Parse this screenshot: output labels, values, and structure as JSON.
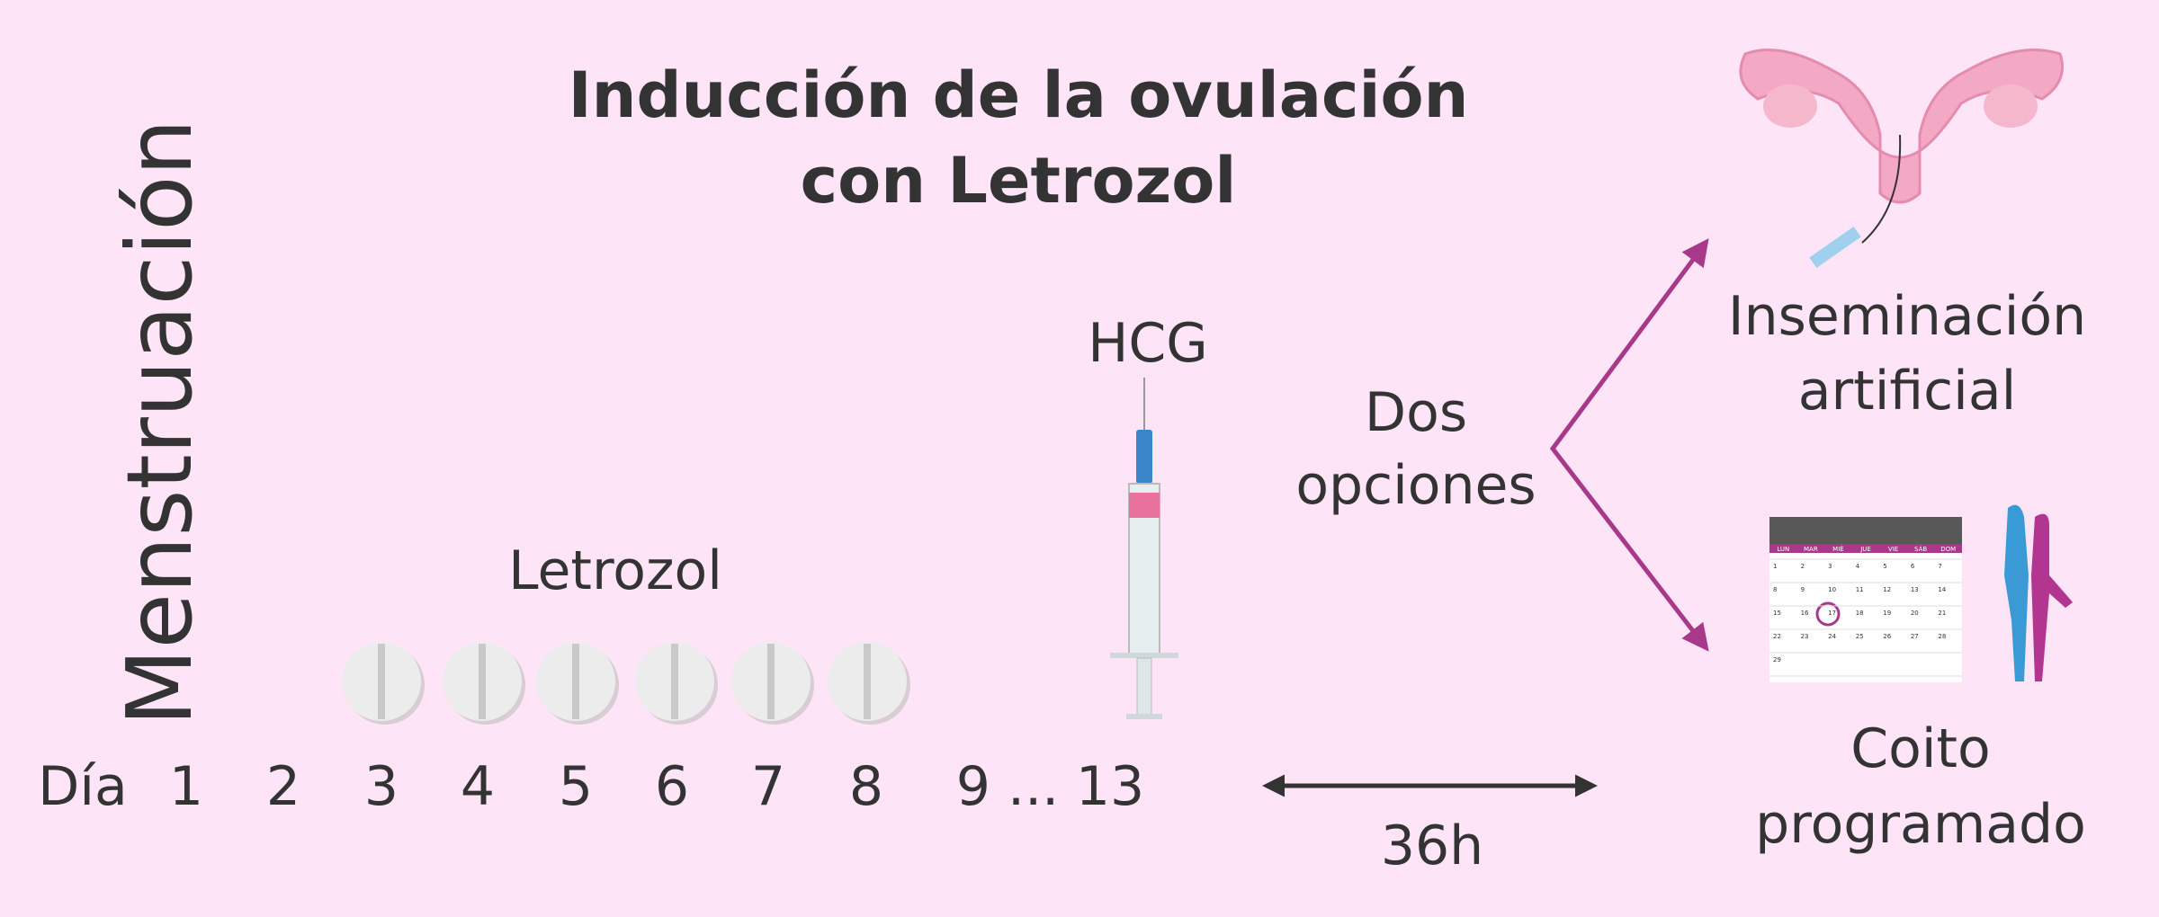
{
  "title": {
    "lines": [
      "Inducción de la ovulación",
      "con Letrozol"
    ]
  },
  "side_label": "Menstruación",
  "days": {
    "label": "Día",
    "items": [
      "1",
      "2",
      "3",
      "4",
      "5",
      "6",
      "7",
      "8",
      "9 ...",
      "13"
    ]
  },
  "medication": "Letrozol",
  "injection": "HCG",
  "choice": {
    "lines": [
      "Dos opciones"
    ],
    "words": [
      "Dos",
      "opciones"
    ]
  },
  "interval": "36h",
  "options": [
    {
      "lines": [
        "Inseminación",
        "artificial"
      ]
    },
    {
      "lines": [
        "Coito",
        "programado"
      ]
    }
  ],
  "calendar": {
    "weekdays": [
      "LUN",
      "MAR",
      "MIÉ",
      "JUE",
      "VIE",
      "SÁB",
      "DOM"
    ],
    "days": [
      "1",
      "2",
      "3",
      "4",
      "5",
      "6",
      "7",
      "8",
      "9",
      "10",
      "11",
      "12",
      "13",
      "14",
      "15",
      "16",
      "17",
      "18",
      "19",
      "20",
      "21",
      "22",
      "23",
      "24",
      "25",
      "26",
      "27",
      "28",
      "29"
    ]
  }
}
